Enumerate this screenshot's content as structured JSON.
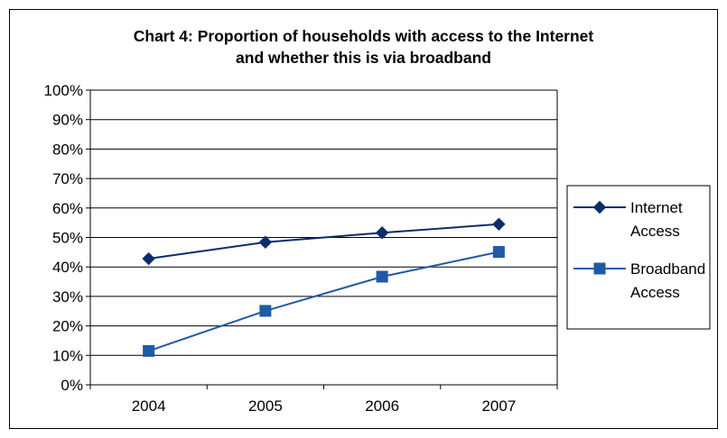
{
  "chart_data": {
    "type": "line",
    "title_lines": [
      "Chart 4: Proportion of households with access to the Internet",
      "and whether this is via broadband"
    ],
    "x": [
      "2004",
      "2005",
      "2006",
      "2007"
    ],
    "ylim": [
      0,
      100
    ],
    "y_ticks": [
      "0%",
      "10%",
      "20%",
      "30%",
      "40%",
      "50%",
      "60%",
      "70%",
      "80%",
      "90%",
      "100%"
    ],
    "grid": true,
    "legend_position": "right",
    "series": [
      {
        "name_lines": [
          "Internet",
          "Access"
        ],
        "values": [
          42.8,
          48.4,
          51.6,
          54.5
        ],
        "marker": "diamond",
        "color": "#0b2d6b"
      },
      {
        "name_lines": [
          "Broadband",
          "Access"
        ],
        "values": [
          11.5,
          25.1,
          36.7,
          45.1
        ],
        "marker": "square",
        "color": "#1f5aa6"
      }
    ]
  }
}
